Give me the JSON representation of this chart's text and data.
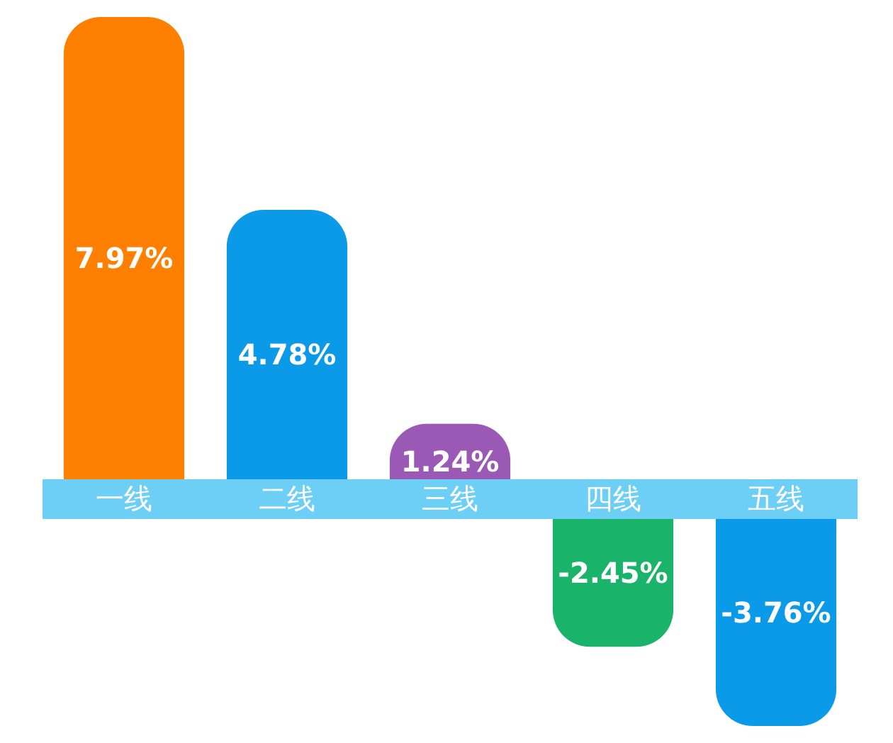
{
  "chart_data": {
    "type": "bar",
    "categories": [
      "一线",
      "二线",
      "三线",
      "四线",
      "五线"
    ],
    "values": [
      7.97,
      4.78,
      1.24,
      -2.45,
      -3.76
    ],
    "colors": [
      "#ff7f00",
      "#0a9ae8",
      "#9b59b6",
      "#1ab36a",
      "#0a9ae8"
    ],
    "value_labels": [
      "7.97%",
      "4.78%",
      "1.24%",
      "-2.45%",
      "-3.76%"
    ],
    "grid": false
  }
}
